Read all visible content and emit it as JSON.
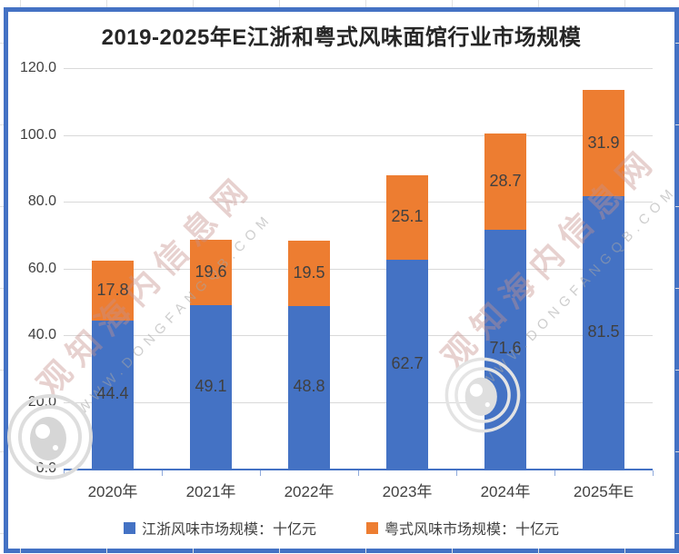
{
  "title": "2019-2025年E江浙和粤式风味面馆行业市场规模",
  "chart_data": {
    "type": "bar",
    "stacked": true,
    "title": "2019-2025年E江浙和粤式风味面馆行业市场规模",
    "categories": [
      "2020年",
      "2021年",
      "2022年",
      "2023年",
      "2024年",
      "2025年E"
    ],
    "series": [
      {
        "name": "江浙风味市场规模：十亿元",
        "color": "#4472C4",
        "values": [
          44.4,
          49.1,
          48.8,
          62.7,
          71.6,
          81.5
        ]
      },
      {
        "name": "粤式风味市场规模：十亿元",
        "color": "#ED7D31",
        "values": [
          17.8,
          19.6,
          19.5,
          25.1,
          28.7,
          31.9
        ]
      }
    ],
    "y_ticks": [
      120.0,
      100.0,
      80.0,
      60.0,
      40.0,
      20.0,
      0.0
    ],
    "y_tick_labels": [
      "120.0",
      "100.0",
      "80.0",
      "60.0",
      "40.0",
      "20.0",
      "0.0"
    ],
    "ylim": [
      0,
      120
    ],
    "xlabel": "",
    "ylabel": "",
    "grid": true,
    "legend_position": "bottom",
    "data_labels": true
  },
  "watermark": {
    "cn": "观知海内信息网",
    "en": "WWW.DONGFANGQB.COM"
  },
  "colors": {
    "series_blue": "#4472C4",
    "series_orange": "#ED7D31",
    "frame_border": "#4472C4",
    "axis_line": "#4472C4",
    "gridline": "#d9d9d9",
    "label_text": "#404040",
    "title_text": "#262626"
  }
}
